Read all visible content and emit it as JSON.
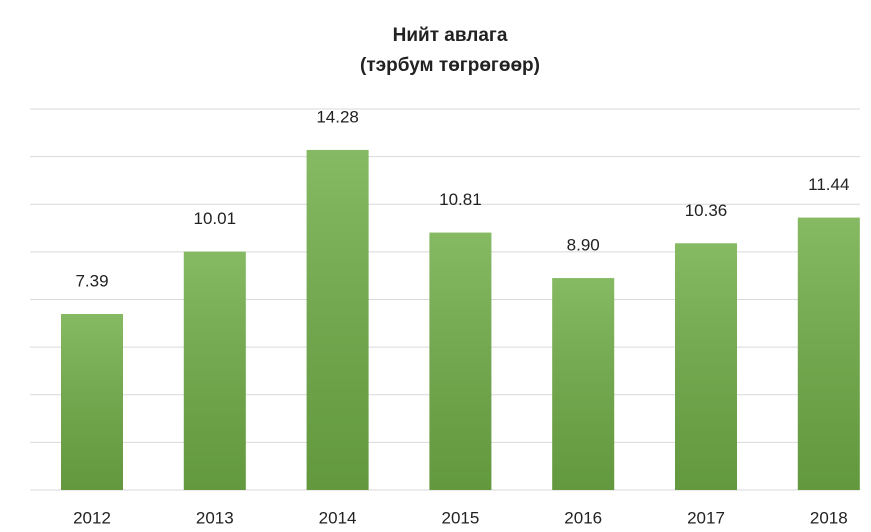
{
  "chart_data": {
    "type": "bar",
    "title": "Нийт авлага",
    "subtitle": "(тэрбум төгрөгөөр)",
    "categories": [
      "2012",
      "2013",
      "2014",
      "2015",
      "2016",
      "2017",
      "2018"
    ],
    "values": [
      7.39,
      10.01,
      14.28,
      10.81,
      8.9,
      10.36,
      11.44
    ],
    "value_labels": [
      "7.39",
      "10.01",
      "14.28",
      "10.81",
      "8.90",
      "10.36",
      "11.44"
    ],
    "color": "#70ad47",
    "ylim": [
      0,
      16
    ],
    "yticks": [
      0,
      2,
      4,
      6,
      8,
      10,
      12,
      14,
      16
    ],
    "grid": true
  }
}
